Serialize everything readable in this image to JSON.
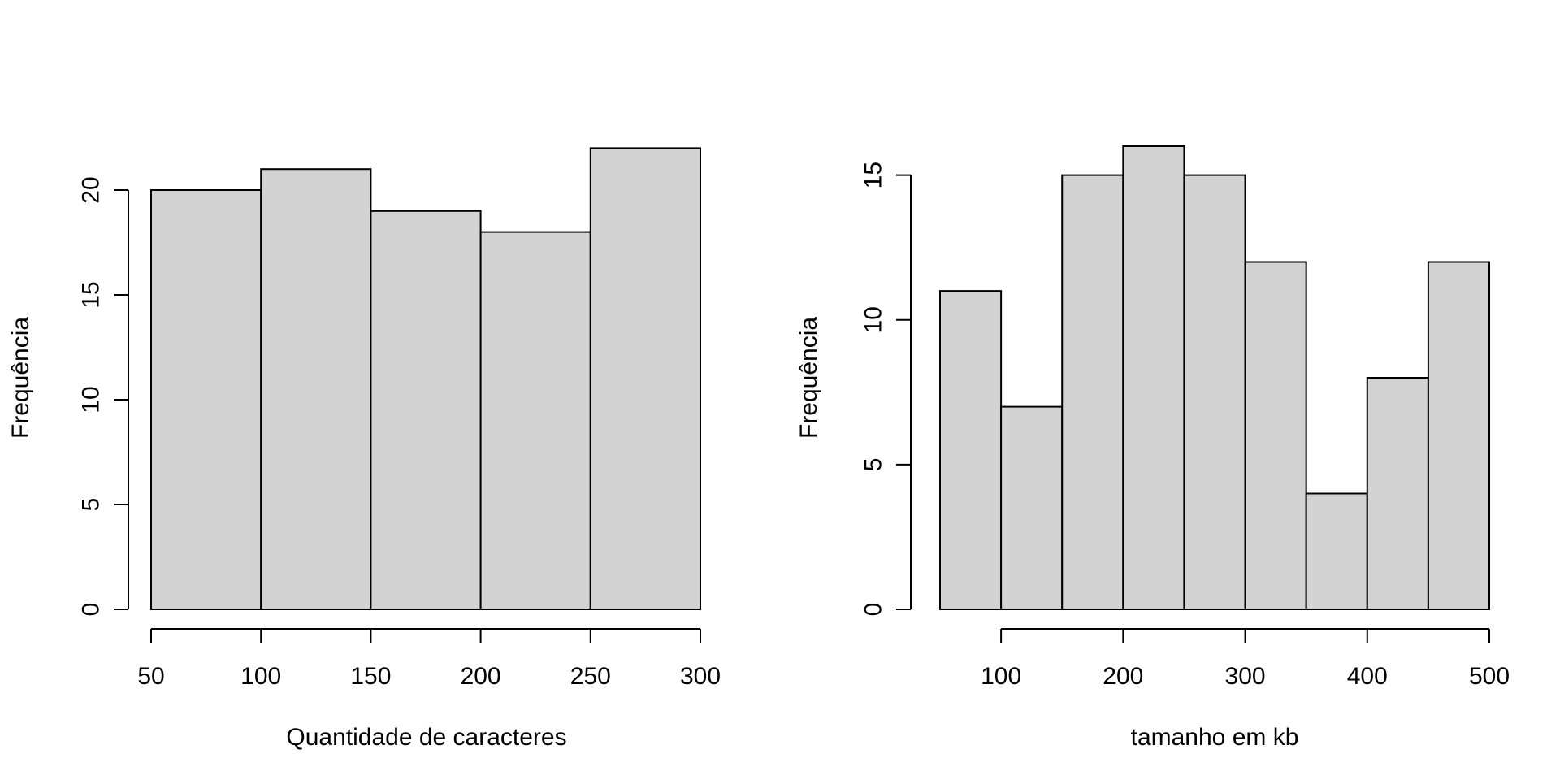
{
  "chart_data": [
    {
      "type": "bar",
      "bins": [
        [
          50,
          100
        ],
        [
          100,
          150
        ],
        [
          150,
          200
        ],
        [
          200,
          250
        ],
        [
          250,
          300
        ]
      ],
      "values": [
        20,
        21,
        19,
        18,
        22
      ],
      "xlabel": "Quantidade de caracteres",
      "ylabel": "Frequência",
      "xlim": [
        50,
        300
      ],
      "ylim": [
        0,
        22
      ],
      "xticks": [
        "50",
        "100",
        "150",
        "200",
        "250",
        "300"
      ],
      "yticks": [
        "0",
        "5",
        "10",
        "15",
        "20"
      ],
      "grid": false,
      "legend": "none"
    },
    {
      "type": "bar",
      "bins": [
        [
          50,
          100
        ],
        [
          100,
          150
        ],
        [
          150,
          200
        ],
        [
          200,
          250
        ],
        [
          250,
          300
        ],
        [
          300,
          350
        ],
        [
          350,
          400
        ],
        [
          400,
          450
        ],
        [
          450,
          500
        ]
      ],
      "values": [
        11,
        7,
        15,
        16,
        15,
        12,
        4,
        8,
        12
      ],
      "xlabel": "tamanho em kb",
      "ylabel": "Frequência",
      "xlim": [
        50,
        500
      ],
      "ylim": [
        0,
        16
      ],
      "xticks": [
        "100",
        "200",
        "300",
        "400",
        "500"
      ],
      "yticks": [
        "0",
        "5",
        "10",
        "15"
      ],
      "grid": false,
      "legend": "none"
    }
  ],
  "colors": {
    "bar_fill": "#d3d3d3",
    "bar_stroke": "#000000"
  }
}
